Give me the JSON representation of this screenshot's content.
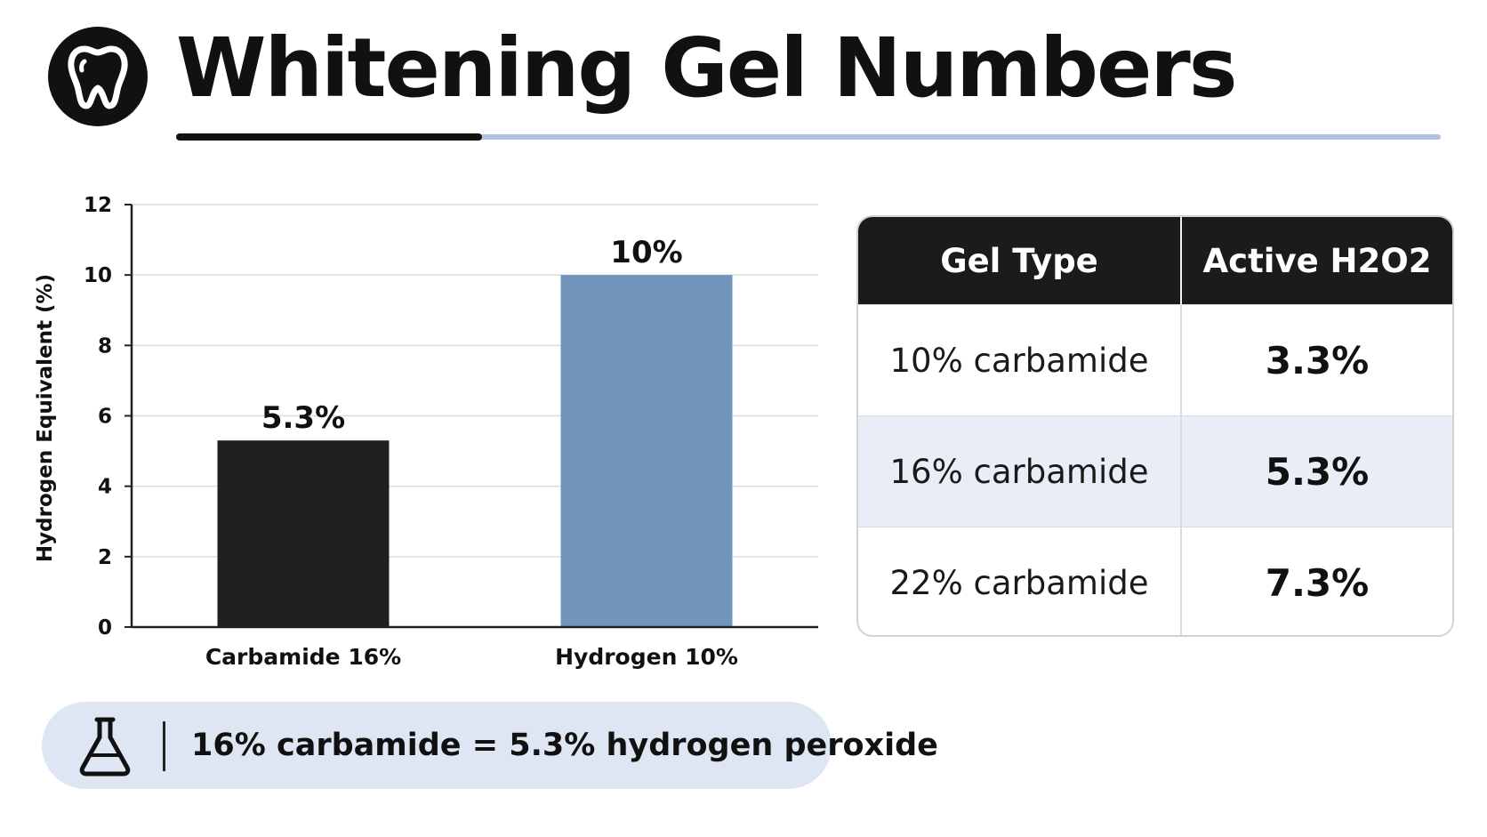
{
  "header": {
    "title": "Whitening Gel Numbers",
    "logo_icon": "tooth-icon"
  },
  "colors": {
    "dark": "#1f1f1f",
    "blue": "#7296bb",
    "accent_light": "#aec4df",
    "row_alt": "#e9eef6",
    "pill_bg": "#dde6f2"
  },
  "chart_data": {
    "type": "bar",
    "categories": [
      "Carbamide 16%",
      "Hydrogen 10%"
    ],
    "values": [
      5.3,
      10
    ],
    "data_labels": [
      "5.3%",
      "10%"
    ],
    "bar_colors": [
      "#1f1f1f",
      "#7296bb"
    ],
    "ylabel": "Hydrogen Equivalent (%)",
    "ylim": [
      0,
      12
    ],
    "yticks": [
      0,
      2,
      4,
      6,
      8,
      10,
      12
    ],
    "grid": true
  },
  "table": {
    "headers": [
      "Gel Type",
      "Active H2O2"
    ],
    "rows": [
      [
        "10% carbamide",
        "3.3%"
      ],
      [
        "16% carbamide",
        "5.3%"
      ],
      [
        "22% carbamide",
        "7.3%"
      ]
    ]
  },
  "note": {
    "icon": "flask-icon",
    "text": "16% carbamide = 5.3% hydrogen peroxide"
  }
}
